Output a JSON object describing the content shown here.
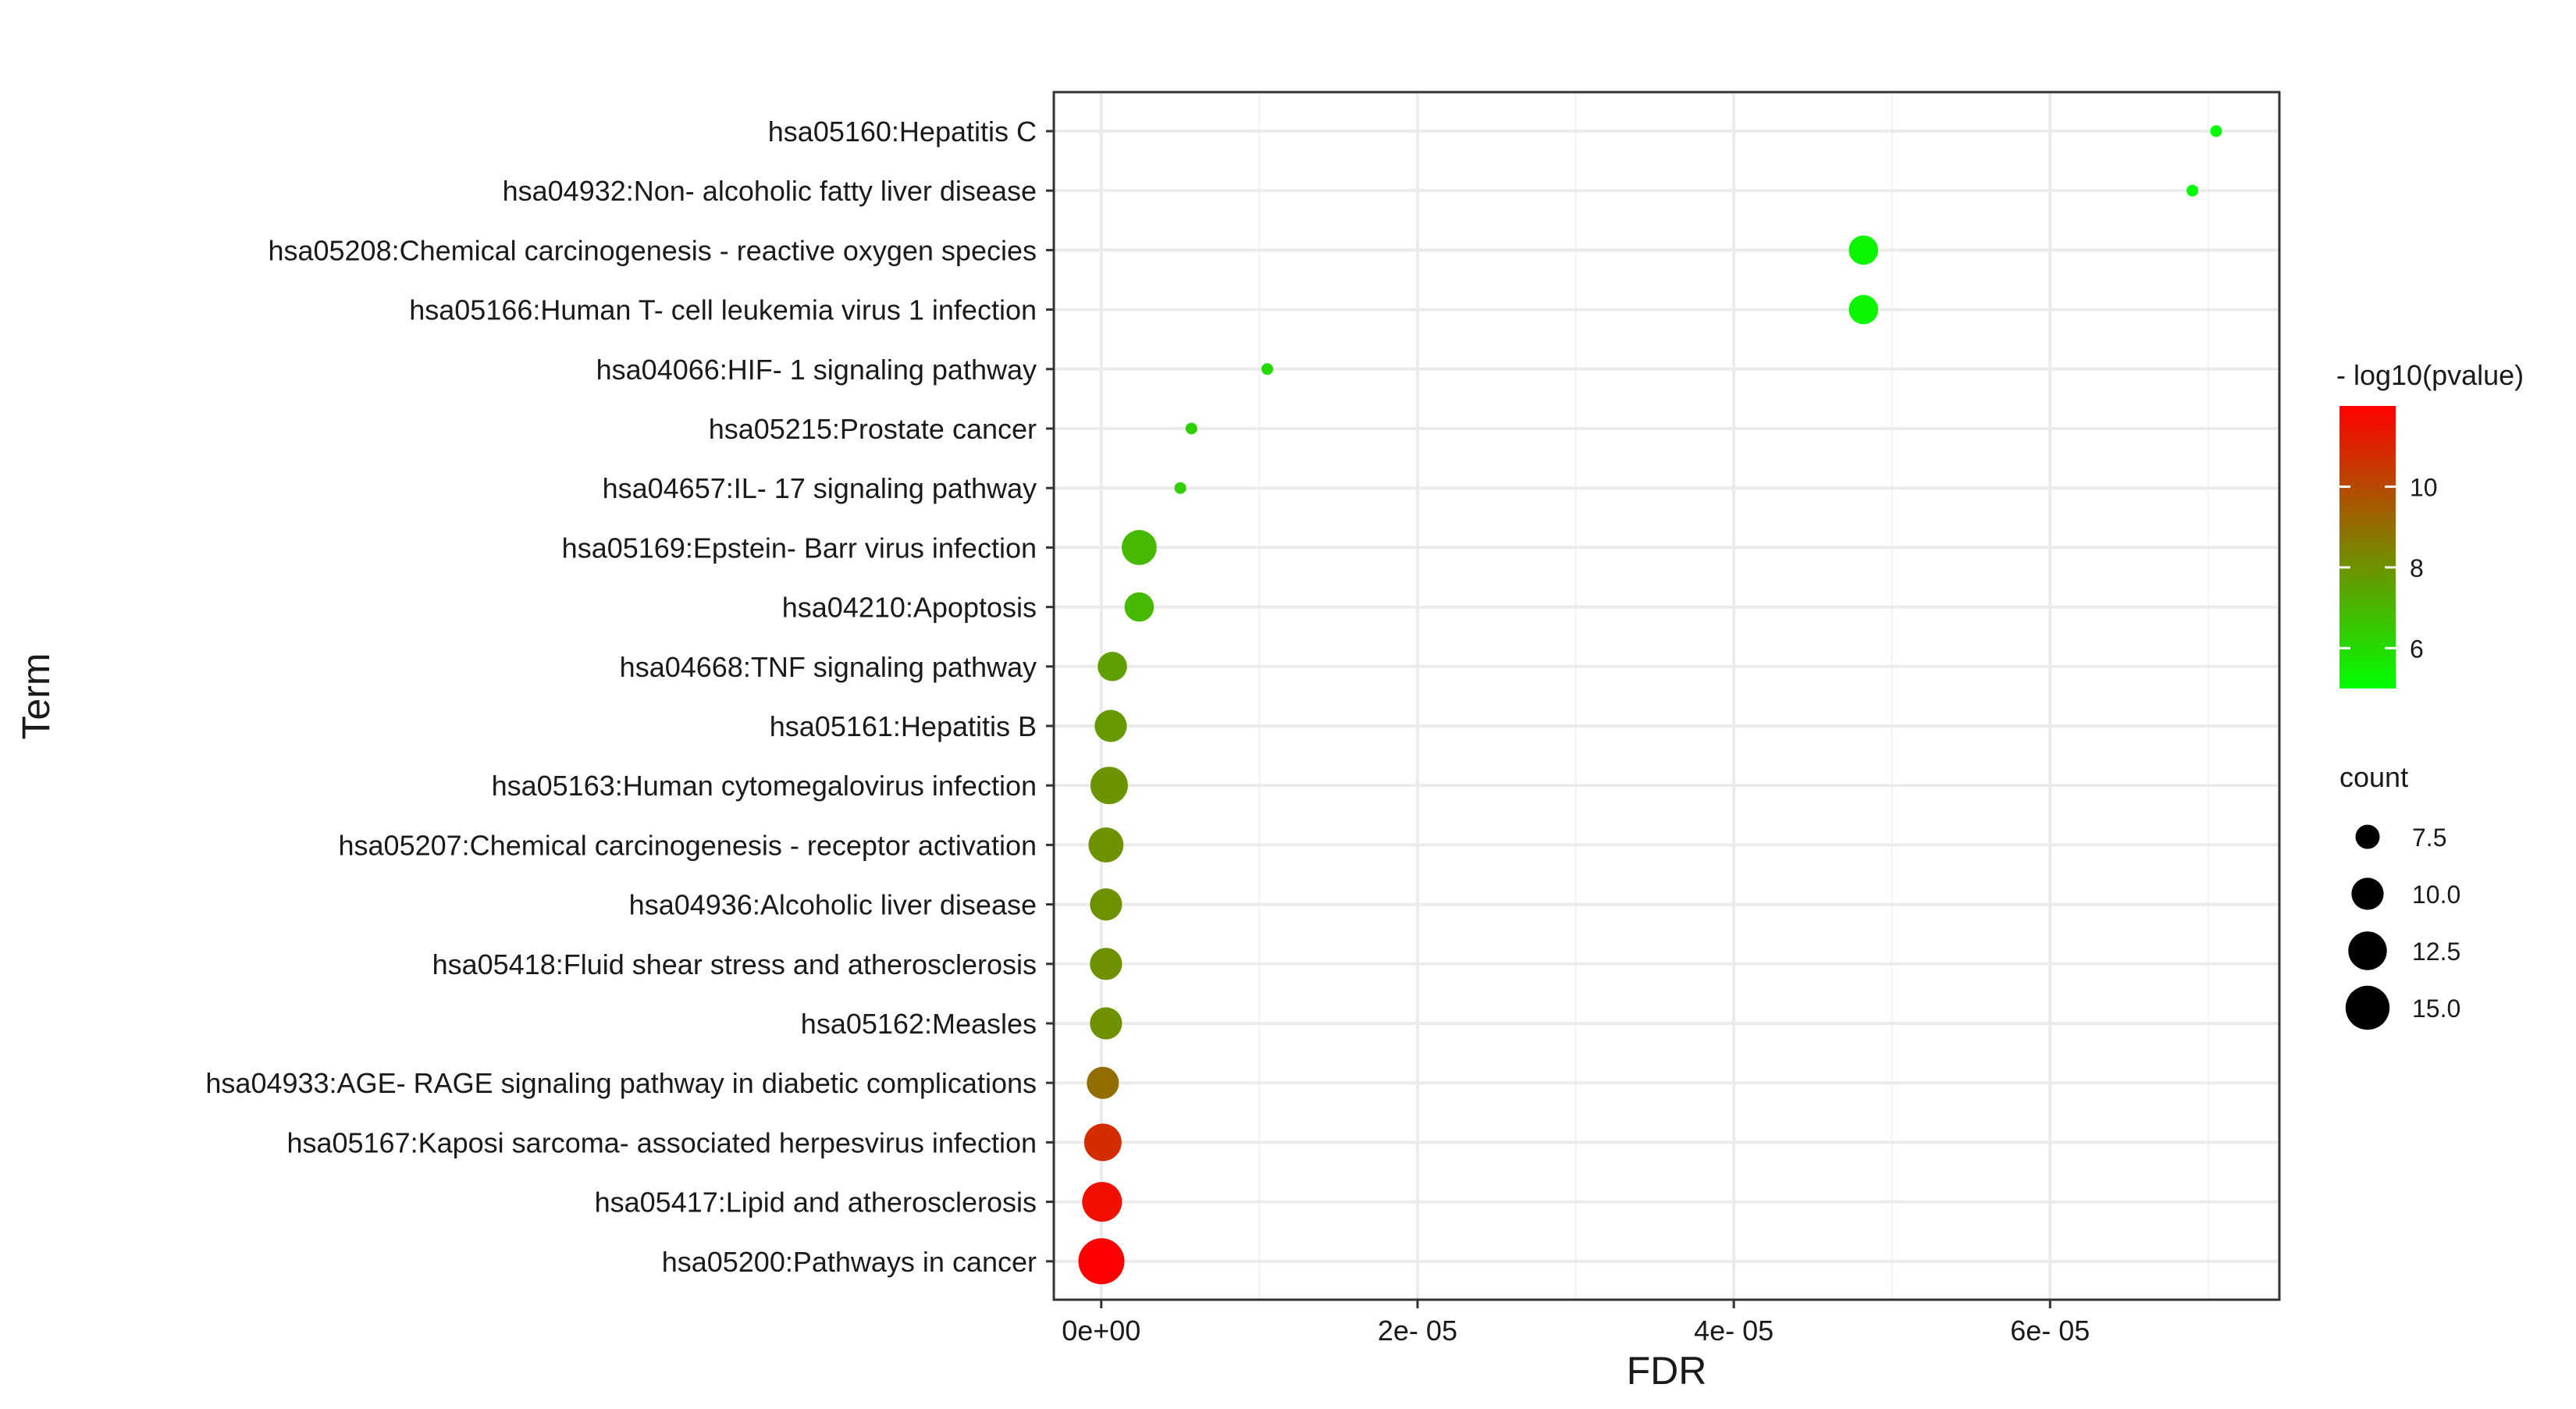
{
  "chart_data": {
    "type": "scatter",
    "title": "",
    "xlabel": "FDR",
    "ylabel": "Term",
    "xlim": [
      -3e-06,
      7.45e-05
    ],
    "x_ticks": [
      {
        "value": 0,
        "label": "0e+00"
      },
      {
        "value": 2e-05,
        "label": "2e- 05"
      },
      {
        "value": 4e-05,
        "label": "4e- 05"
      },
      {
        "value": 6e-05,
        "label": "6e- 05"
      }
    ],
    "grid": true,
    "legend_position": "right",
    "points": [
      {
        "term": "hsa05160:Hepatitis C",
        "fdr": 7.05e-05,
        "count": 5,
        "neglog10p": 5.0
      },
      {
        "term": "hsa04932:Non- alcoholic fatty liver disease",
        "fdr": 6.9e-05,
        "count": 5,
        "neglog10p": 5.05
      },
      {
        "term": "hsa05208:Chemical carcinogenesis -  reactive oxygen species",
        "fdr": 4.82e-05,
        "count": 9,
        "neglog10p": 5.3
      },
      {
        "term": "hsa05166:Human T- cell leukemia virus 1 infection",
        "fdr": 4.82e-05,
        "count": 9,
        "neglog10p": 5.3
      },
      {
        "term": "hsa04066:HIF- 1 signaling pathway",
        "fdr": 1.05e-05,
        "count": 5,
        "neglog10p": 6.0
      },
      {
        "term": "hsa05215:Prostate cancer",
        "fdr": 5.7e-06,
        "count": 5,
        "neglog10p": 6.3
      },
      {
        "term": "hsa04657:IL- 17 signaling pathway",
        "fdr": 5e-06,
        "count": 5,
        "neglog10p": 6.35
      },
      {
        "term": "hsa05169:Epstein- Barr virus infection",
        "fdr": 2.4e-06,
        "count": 11,
        "neglog10p": 6.9
      },
      {
        "term": "hsa04210:Apoptosis",
        "fdr": 2.4e-06,
        "count": 9,
        "neglog10p": 6.9
      },
      {
        "term": "hsa04668:TNF signaling pathway",
        "fdr": 7e-07,
        "count": 9,
        "neglog10p": 7.6
      },
      {
        "term": "hsa05161:Hepatitis B",
        "fdr": 6e-07,
        "count": 10,
        "neglog10p": 7.8
      },
      {
        "term": "hsa05163:Human cytomegalovirus infection",
        "fdr": 5e-07,
        "count": 12,
        "neglog10p": 7.9
      },
      {
        "term": "hsa05207:Chemical carcinogenesis -  receptor activation",
        "fdr": 3e-07,
        "count": 11,
        "neglog10p": 8.0
      },
      {
        "term": "hsa04936:Alcoholic liver disease",
        "fdr": 3e-07,
        "count": 10,
        "neglog10p": 8.0
      },
      {
        "term": "hsa05418:Fluid shear stress and atherosclerosis",
        "fdr": 3e-07,
        "count": 10,
        "neglog10p": 8.05
      },
      {
        "term": "hsa05162:Measles",
        "fdr": 3e-07,
        "count": 10,
        "neglog10p": 8.05
      },
      {
        "term": "hsa04933:AGE- RAGE signaling pathway in diabetic complications",
        "fdr": 1e-07,
        "count": 10,
        "neglog10p": 9.0
      },
      {
        "term": "hsa05167:Kaposi sarcoma- associated herpesvirus infection",
        "fdr": 1e-07,
        "count": 12,
        "neglog10p": 10.8
      },
      {
        "term": "hsa05417:Lipid and atherosclerosis",
        "fdr": 5e-08,
        "count": 13,
        "neglog10p": 11.6
      },
      {
        "term": "hsa05200:Pathways in cancer",
        "fdr": 1e-08,
        "count": 16,
        "neglog10p": 12.0
      }
    ],
    "color_legend": {
      "title": "- log10(pvalue)",
      "min": 5.0,
      "max": 12.0,
      "low_color": "#00ff00",
      "high_color": "#ff0000",
      "ticks": [
        {
          "value": 6,
          "label": "6"
        },
        {
          "value": 8,
          "label": "8"
        },
        {
          "value": 10,
          "label": "10"
        }
      ]
    },
    "size_legend": {
      "title": "count",
      "entries": [
        {
          "value": 7.5,
          "label": "7.5"
        },
        {
          "value": 10.0,
          "label": "10.0"
        },
        {
          "value": 12.5,
          "label": "12.5"
        },
        {
          "value": 15.0,
          "label": "15.0"
        }
      ]
    }
  }
}
